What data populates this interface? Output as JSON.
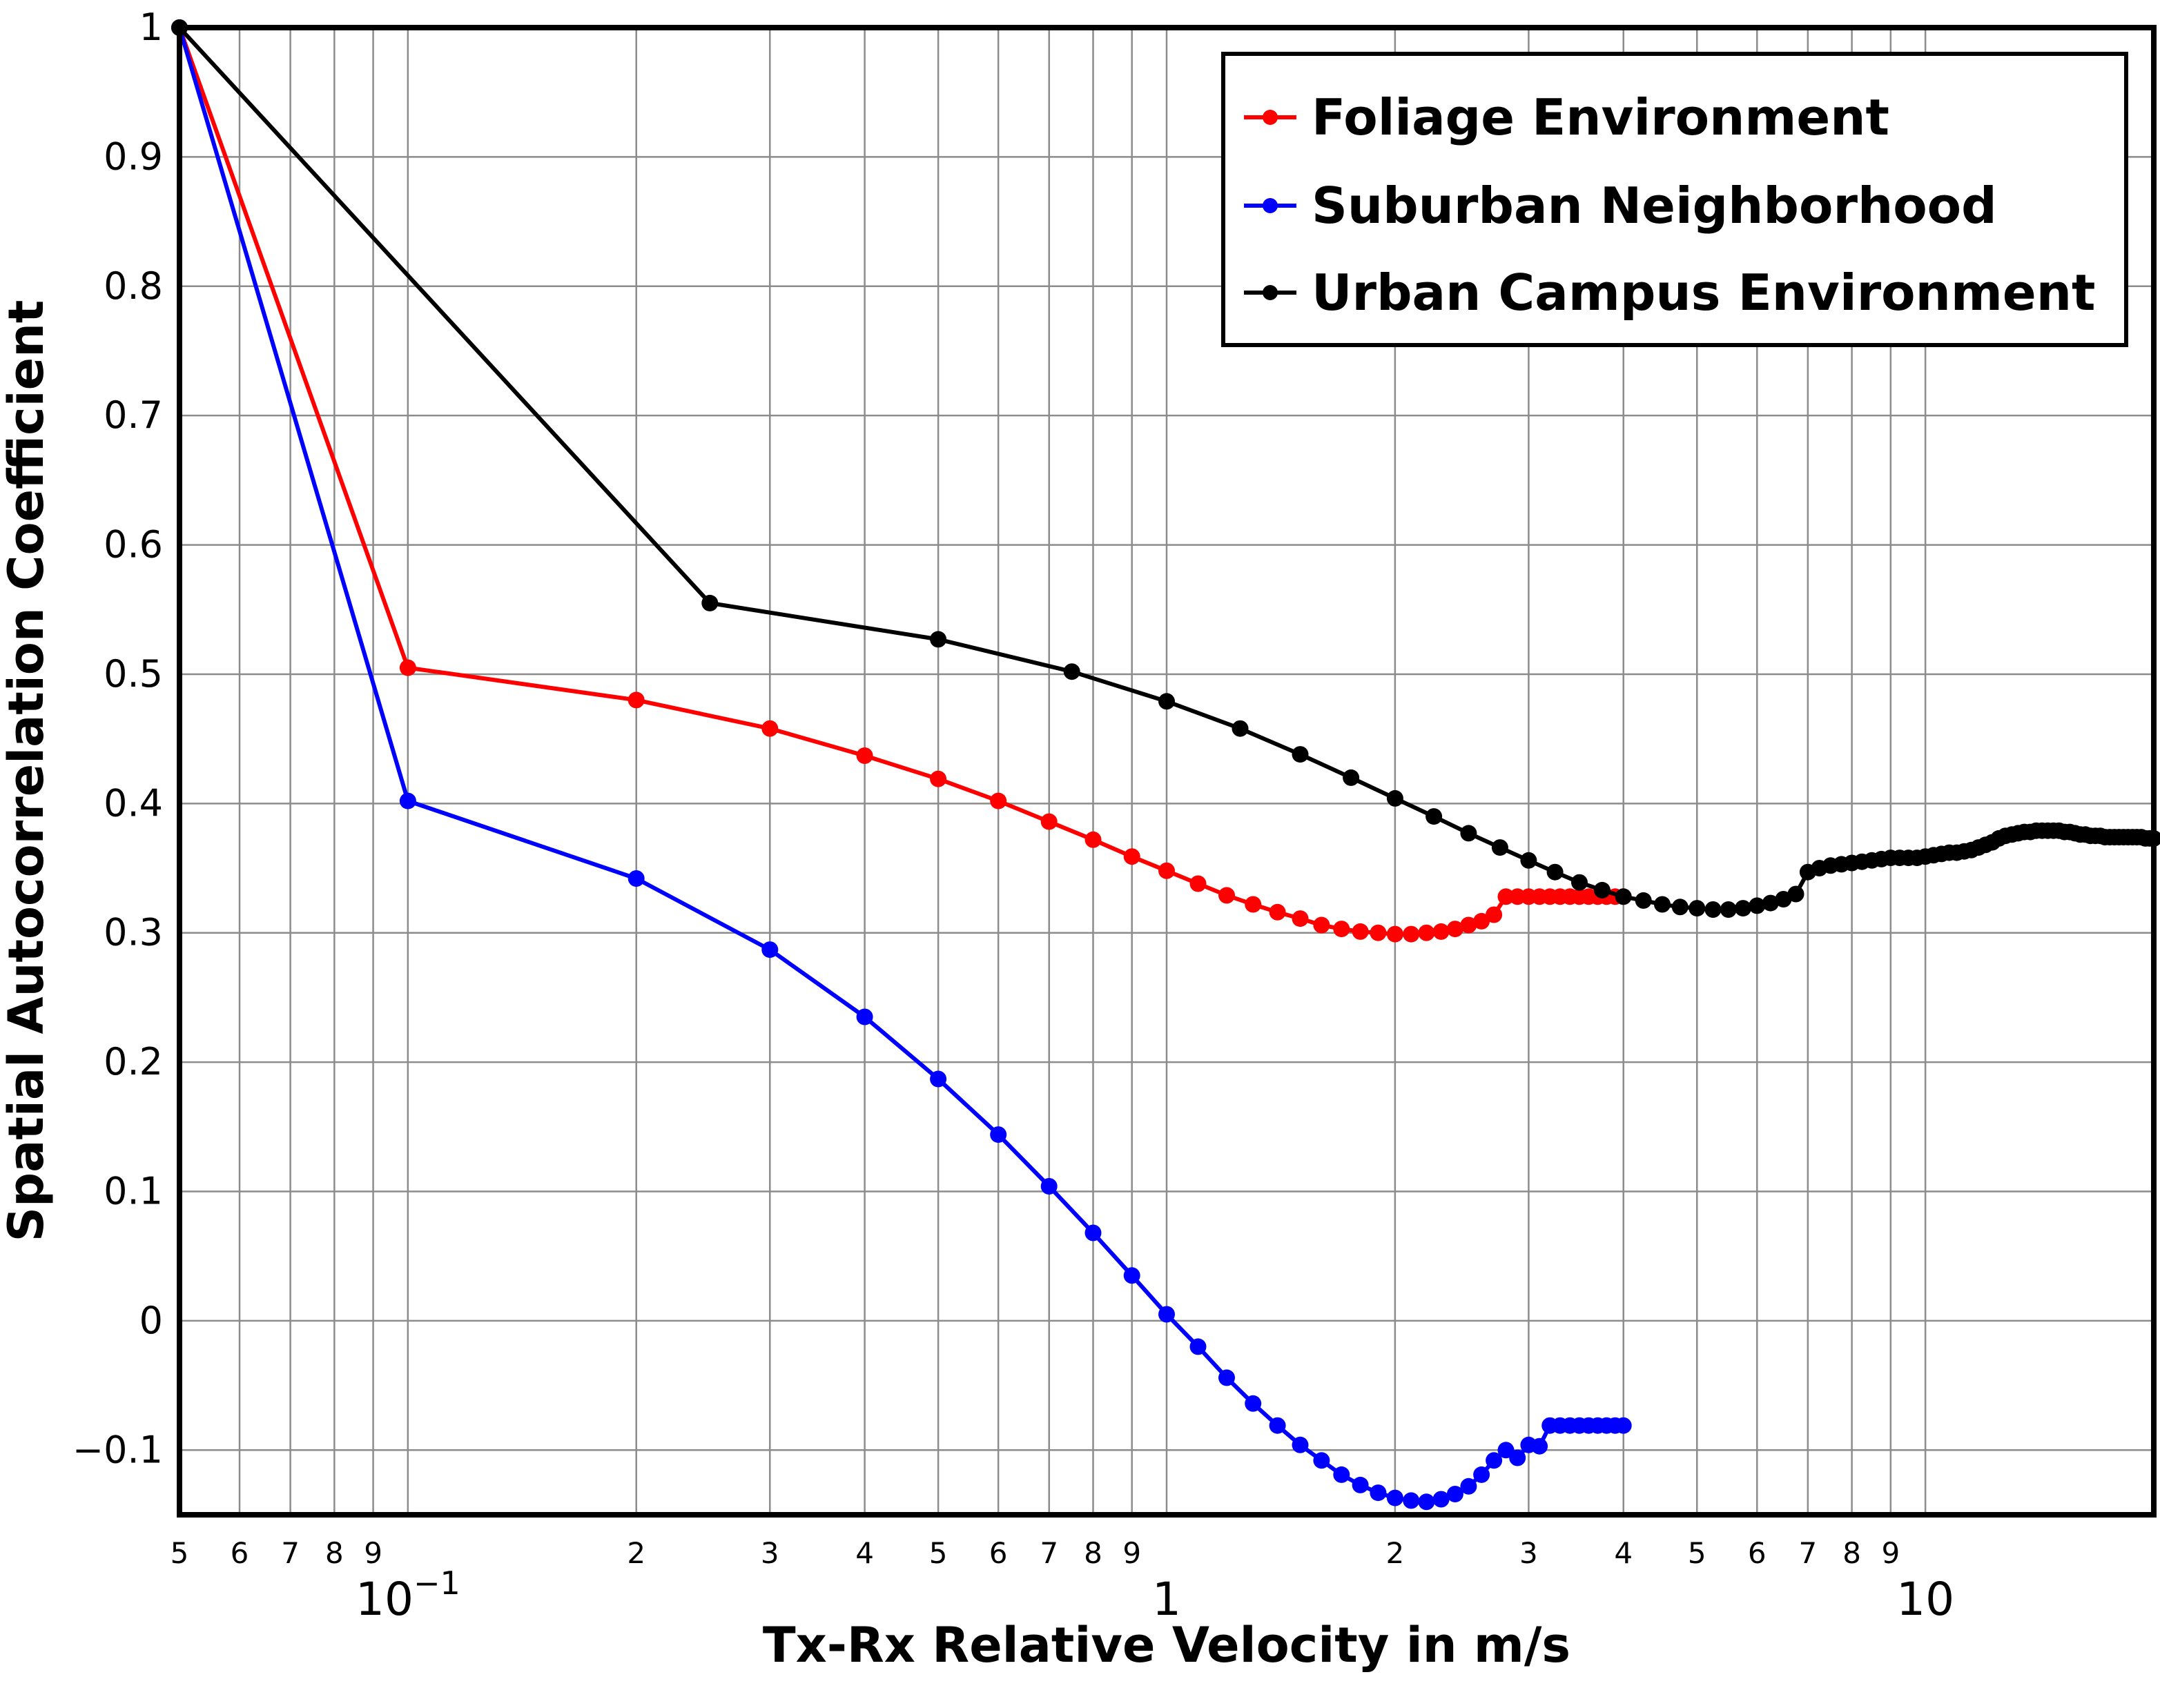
{
  "chart_data": {
    "type": "line",
    "xlabel": "Tx-Rx Relative Velocity in m/s",
    "ylabel": "Spatial Autocorrelation Coefficient",
    "x_scale": "log",
    "xlim": [
      0.05,
      20
    ],
    "ylim": [
      -0.15,
      1
    ],
    "grid": true,
    "legend_position": "top-right",
    "y_ticks": [
      "1",
      "0.9",
      "0.8",
      "0.7",
      "0.6",
      "0.5",
      "0.4",
      "0.3",
      "0.2",
      "0.1",
      "0",
      "−0.1"
    ],
    "x_minor_labels": [
      {
        "v": 0.05,
        "t": "5"
      },
      {
        "v": 0.06,
        "t": "6"
      },
      {
        "v": 0.07,
        "t": "7"
      },
      {
        "v": 0.08,
        "t": "8"
      },
      {
        "v": 0.09,
        "t": "9"
      },
      {
        "v": 0.2,
        "t": "2"
      },
      {
        "v": 0.3,
        "t": "3"
      },
      {
        "v": 0.4,
        "t": "4"
      },
      {
        "v": 0.5,
        "t": "5"
      },
      {
        "v": 0.6,
        "t": "6"
      },
      {
        "v": 0.7,
        "t": "7"
      },
      {
        "v": 0.8,
        "t": "8"
      },
      {
        "v": 0.9,
        "t": "9"
      },
      {
        "v": 2,
        "t": "2"
      },
      {
        "v": 3,
        "t": "3"
      },
      {
        "v": 4,
        "t": "4"
      },
      {
        "v": 5,
        "t": "5"
      },
      {
        "v": 6,
        "t": "6"
      },
      {
        "v": 7,
        "t": "7"
      },
      {
        "v": 8,
        "t": "8"
      },
      {
        "v": 9,
        "t": "9"
      }
    ],
    "x_major_labels": [
      {
        "v": 0.1,
        "base": "10",
        "exp": "−1"
      },
      {
        "v": 1,
        "base": "1",
        "exp": ""
      },
      {
        "v": 10,
        "base": "10",
        "exp": ""
      }
    ],
    "series": [
      {
        "name": "Foliage Environment",
        "color": "#ff0000",
        "points": [
          [
            0.05,
            1.0
          ],
          [
            0.1,
            0.505
          ],
          [
            0.2,
            0.48
          ],
          [
            0.3,
            0.458
          ],
          [
            0.4,
            0.437
          ],
          [
            0.5,
            0.419
          ],
          [
            0.6,
            0.402
          ],
          [
            0.7,
            0.386
          ],
          [
            0.8,
            0.372
          ],
          [
            0.9,
            0.359
          ],
          [
            1.0,
            0.348
          ],
          [
            1.1,
            0.338
          ],
          [
            1.2,
            0.329
          ],
          [
            1.3,
            0.322
          ],
          [
            1.4,
            0.316
          ],
          [
            1.5,
            0.311
          ],
          [
            1.6,
            0.306
          ],
          [
            1.7,
            0.303
          ],
          [
            1.8,
            0.301
          ],
          [
            1.9,
            0.3
          ],
          [
            2.0,
            0.299
          ],
          [
            2.1,
            0.299
          ],
          [
            2.2,
            0.3
          ],
          [
            2.3,
            0.301
          ],
          [
            2.4,
            0.303
          ],
          [
            2.5,
            0.306
          ],
          [
            2.6,
            0.309
          ],
          [
            2.7,
            0.314
          ],
          [
            2.8,
            0.328
          ],
          [
            2.9,
            0.328
          ],
          [
            3.0,
            0.328
          ],
          [
            3.1,
            0.328
          ],
          [
            3.2,
            0.328
          ],
          [
            3.3,
            0.328
          ],
          [
            3.4,
            0.328
          ],
          [
            3.5,
            0.328
          ],
          [
            3.6,
            0.328
          ],
          [
            3.7,
            0.328
          ],
          [
            3.8,
            0.328
          ],
          [
            3.9,
            0.328
          ],
          [
            4.0,
            0.328
          ]
        ]
      },
      {
        "name": "Suburban Neighborhood",
        "color": "#0000ff",
        "points": [
          [
            0.05,
            1.0
          ],
          [
            0.1,
            0.402
          ],
          [
            0.2,
            0.342
          ],
          [
            0.3,
            0.287
          ],
          [
            0.4,
            0.235
          ],
          [
            0.5,
            0.187
          ],
          [
            0.6,
            0.144
          ],
          [
            0.7,
            0.104
          ],
          [
            0.8,
            0.068
          ],
          [
            0.9,
            0.035
          ],
          [
            1.0,
            0.005
          ],
          [
            1.1,
            -0.02
          ],
          [
            1.2,
            -0.044
          ],
          [
            1.3,
            -0.064
          ],
          [
            1.4,
            -0.081
          ],
          [
            1.5,
            -0.096
          ],
          [
            1.6,
            -0.108
          ],
          [
            1.7,
            -0.119
          ],
          [
            1.8,
            -0.127
          ],
          [
            1.9,
            -0.133
          ],
          [
            2.0,
            -0.137
          ],
          [
            2.1,
            -0.139
          ],
          [
            2.2,
            -0.14
          ],
          [
            2.3,
            -0.138
          ],
          [
            2.4,
            -0.134
          ],
          [
            2.5,
            -0.128
          ],
          [
            2.6,
            -0.119
          ],
          [
            2.7,
            -0.108
          ],
          [
            2.8,
            -0.1
          ],
          [
            2.9,
            -0.106
          ],
          [
            3.0,
            -0.096
          ],
          [
            3.1,
            -0.097
          ],
          [
            3.2,
            -0.081
          ],
          [
            3.3,
            -0.081
          ],
          [
            3.4,
            -0.081
          ],
          [
            3.5,
            -0.081
          ],
          [
            3.6,
            -0.081
          ],
          [
            3.7,
            -0.081
          ],
          [
            3.8,
            -0.081
          ],
          [
            3.9,
            -0.081
          ],
          [
            4.0,
            -0.081
          ]
        ]
      },
      {
        "name": "Urban Campus Environment",
        "color": "#000000",
        "points": [
          [
            0.05,
            1.0
          ],
          [
            0.25,
            0.555
          ],
          [
            0.5,
            0.527
          ],
          [
            0.75,
            0.502
          ],
          [
            1.0,
            0.479
          ],
          [
            1.25,
            0.458
          ],
          [
            1.5,
            0.438
          ],
          [
            1.75,
            0.42
          ],
          [
            2.0,
            0.404
          ],
          [
            2.25,
            0.39
          ],
          [
            2.5,
            0.377
          ],
          [
            2.75,
            0.366
          ],
          [
            3.0,
            0.356
          ],
          [
            3.25,
            0.347
          ],
          [
            3.5,
            0.339
          ],
          [
            3.75,
            0.333
          ],
          [
            4.0,
            0.328
          ],
          [
            4.25,
            0.325
          ],
          [
            4.5,
            0.322
          ],
          [
            4.75,
            0.32
          ],
          [
            5.0,
            0.319
          ],
          [
            5.25,
            0.318
          ],
          [
            5.5,
            0.318
          ],
          [
            5.75,
            0.319
          ],
          [
            6.0,
            0.321
          ],
          [
            6.25,
            0.323
          ],
          [
            6.5,
            0.326
          ],
          [
            6.75,
            0.33
          ],
          [
            7.0,
            0.347
          ],
          [
            7.25,
            0.35
          ],
          [
            7.5,
            0.352
          ],
          [
            7.75,
            0.353
          ],
          [
            8.0,
            0.354
          ],
          [
            8.25,
            0.355
          ],
          [
            8.5,
            0.356
          ],
          [
            8.75,
            0.357
          ],
          [
            9.0,
            0.358
          ],
          [
            9.25,
            0.358
          ],
          [
            9.5,
            0.358
          ],
          [
            9.75,
            0.358
          ],
          [
            10.0,
            0.359
          ],
          [
            10.25,
            0.36
          ],
          [
            10.5,
            0.361
          ],
          [
            10.75,
            0.362
          ],
          [
            11.0,
            0.362
          ],
          [
            11.25,
            0.363
          ],
          [
            11.5,
            0.364
          ],
          [
            11.75,
            0.366
          ],
          [
            12.0,
            0.368
          ],
          [
            12.25,
            0.37
          ],
          [
            12.5,
            0.373
          ],
          [
            12.75,
            0.375
          ],
          [
            13.0,
            0.376
          ],
          [
            13.25,
            0.377
          ],
          [
            13.5,
            0.378
          ],
          [
            13.75,
            0.378
          ],
          [
            14.0,
            0.379
          ],
          [
            14.25,
            0.379
          ],
          [
            14.5,
            0.379
          ],
          [
            14.75,
            0.379
          ],
          [
            15.0,
            0.379
          ],
          [
            15.25,
            0.378
          ],
          [
            15.5,
            0.378
          ],
          [
            15.75,
            0.377
          ],
          [
            16.0,
            0.376
          ],
          [
            16.25,
            0.376
          ],
          [
            16.5,
            0.375
          ],
          [
            16.75,
            0.375
          ],
          [
            17.0,
            0.375
          ],
          [
            17.25,
            0.374
          ],
          [
            17.5,
            0.374
          ],
          [
            17.75,
            0.374
          ],
          [
            18.0,
            0.374
          ],
          [
            18.25,
            0.374
          ],
          [
            18.5,
            0.374
          ],
          [
            18.75,
            0.374
          ],
          [
            19.0,
            0.374
          ],
          [
            19.25,
            0.374
          ],
          [
            19.5,
            0.373
          ],
          [
            19.75,
            0.373
          ],
          [
            20.0,
            0.373
          ]
        ]
      }
    ]
  }
}
